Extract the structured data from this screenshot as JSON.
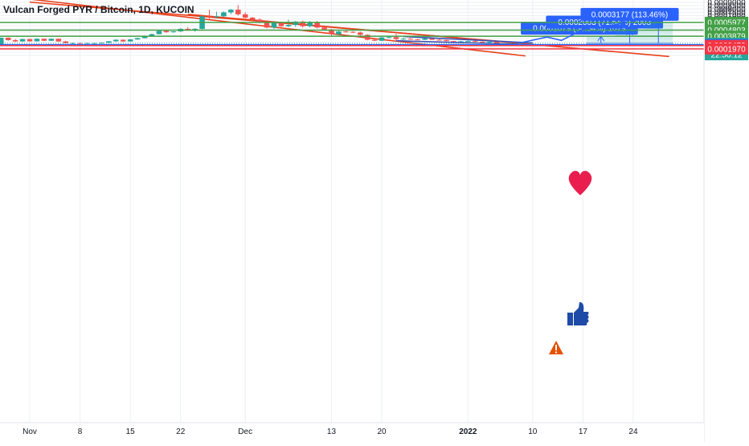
{
  "chart_data": {
    "type": "candlestick",
    "title": "Vulcan Forged PYR / Bitcoin, 1D, KUCOIN",
    "currency": "BTC",
    "y_axis": {
      "ylim": [
        8e-05,
        0.0009
      ],
      "ticks": [
        "0.0001000",
        "0.0001500",
        "0.0002000",
        "0.0002500",
        "0.0003000",
        "0.0003500",
        "0.0004000",
        "0.0004500",
        "0.0005000",
        "0.0005500",
        "0.0006000",
        "0.0006500",
        "0.0007000",
        "0.0007500",
        "0.0008000",
        "0.0008500",
        "0.0009000"
      ]
    },
    "x_axis": {
      "tick_labels": [
        {
          "label": "Nov",
          "day": 0
        },
        {
          "label": "8",
          "day": 7
        },
        {
          "label": "15",
          "day": 14
        },
        {
          "label": "22",
          "day": 21
        },
        {
          "label": "Dec",
          "day": 30
        },
        {
          "label": "13",
          "day": 42
        },
        {
          "label": "20",
          "day": 49
        },
        {
          "label": "2022",
          "day": 61
        },
        {
          "label": "10",
          "day": 70
        },
        {
          "label": "17",
          "day": 77
        },
        {
          "label": "24",
          "day": 84
        }
      ],
      "bold_labels": [
        "2022"
      ]
    },
    "candles": [
      [
        0.000172,
        0.000185,
        0.00017,
        0.00018
      ],
      [
        0.00018,
        0.000195,
        0.000178,
        0.00019
      ],
      [
        0.00019,
        0.00023,
        0.000188,
        0.000225
      ],
      [
        0.000225,
        0.00026,
        0.00022,
        0.00025
      ],
      [
        0.00025,
        0.00037,
        0.000245,
        0.000365
      ],
      [
        0.000365,
        0.000372,
        0.00032,
        0.00033
      ],
      [
        0.00033,
        0.000345,
        0.0003,
        0.00031
      ],
      [
        0.00031,
        0.00035,
        0.000305,
        0.000345
      ],
      [
        0.000345,
        0.00035,
        0.000305,
        0.000312
      ],
      [
        0.000312,
        0.000355,
        0.000308,
        0.00035
      ],
      [
        0.00035,
        0.000355,
        0.000315,
        0.00032
      ],
      [
        0.00032,
        0.000352,
        0.000318,
        0.00035
      ],
      [
        0.00035,
        0.000352,
        0.000305,
        0.00031
      ],
      [
        0.00031,
        0.00032,
        0.00028,
        0.000285
      ],
      [
        0.000285,
        0.000292,
        0.000265,
        0.000285
      ],
      [
        0.000285,
        0.000292,
        0.00027,
        0.00028
      ],
      [
        0.00028,
        0.000292,
        0.000275,
        0.000285
      ],
      [
        0.000285,
        0.00029,
        0.00027,
        0.000285
      ],
      [
        0.000285,
        0.000295,
        0.000272,
        0.00029
      ],
      [
        0.00029,
        0.000315,
        0.000285,
        0.000312
      ],
      [
        0.000312,
        0.00034,
        0.000305,
        0.000335
      ],
      [
        0.000335,
        0.00034,
        0.0003,
        0.00031
      ],
      [
        0.00031,
        0.000345,
        0.000305,
        0.00034
      ],
      [
        0.00034,
        0.000365,
        0.000335,
        0.00036
      ],
      [
        0.00036,
        0.0004,
        0.000355,
        0.000395
      ],
      [
        0.000395,
        0.00043,
        0.000385,
        0.00042
      ],
      [
        0.00042,
        0.00048,
        0.000415,
        0.00047
      ],
      [
        0.00047,
        0.00048,
        0.00044,
        0.00045
      ],
      [
        0.00045,
        0.000468,
        0.00044,
        0.000462
      ],
      [
        0.000462,
        0.00051,
        0.000455,
        0.0005
      ],
      [
        0.0005,
        0.000525,
        0.00047,
        0.00048
      ],
      [
        0.00048,
        0.00051,
        0.00046,
        0.0005
      ],
      [
        0.0005,
        0.0007,
        0.00049,
        0.00069
      ],
      [
        0.00069,
        0.00079,
        0.00065,
        0.00068
      ],
      [
        0.00068,
        0.00076,
        0.00066,
        0.00069
      ],
      [
        0.00069,
        0.000765,
        0.000675,
        0.00075
      ],
      [
        0.00075,
        0.0008,
        0.00072,
        0.00079
      ],
      [
        0.00079,
        0.00086,
        0.0007,
        0.00072
      ],
      [
        0.00072,
        0.00075,
        0.00066,
        0.00067
      ],
      [
        0.00067,
        0.00068,
        0.000625,
        0.00064
      ],
      [
        0.00064,
        0.00066,
        0.000585,
        0.0006
      ],
      [
        0.0006,
        0.00063,
        0.00051,
        0.00052
      ],
      [
        0.00052,
        0.0006,
        0.0005,
        0.00059
      ],
      [
        0.00059,
        0.0006,
        0.00053,
        0.00054
      ],
      [
        0.00054,
        0.00064,
        0.000525,
        0.00056
      ],
      [
        0.00056,
        0.00062,
        0.00053,
        0.00061
      ],
      [
        0.00061,
        0.000625,
        0.00052,
        0.00054
      ],
      [
        0.00054,
        0.00062,
        0.00052,
        0.00059
      ],
      [
        0.00059,
        0.00062,
        0.00051,
        0.00052
      ],
      [
        0.00052,
        0.00055,
        0.00048,
        0.00049
      ],
      [
        0.00049,
        0.0005,
        0.00039,
        0.00042
      ],
      [
        0.00042,
        0.00047,
        0.0004,
        0.00046
      ],
      [
        0.00046,
        0.000475,
        0.000445,
        0.000455
      ],
      [
        0.000455,
        0.000465,
        0.000435,
        0.000445
      ],
      [
        0.000445,
        0.00046,
        0.000395,
        0.00041
      ],
      [
        0.00041,
        0.00042,
        0.000325,
        0.000335
      ],
      [
        0.000335,
        0.000345,
        0.000315,
        0.00032
      ],
      [
        0.00032,
        0.000375,
        0.000315,
        0.00037
      ],
      [
        0.00037,
        0.000385,
        0.00036,
        0.000375
      ],
      [
        0.000375,
        0.000425,
        0.00033,
        0.000345
      ],
      [
        0.000345,
        0.000365,
        0.000335,
        0.00035
      ],
      [
        0.00035,
        0.000362,
        0.000335,
        0.00034
      ],
      [
        0.00034,
        0.000348,
        0.00033,
        0.000335
      ],
      [
        0.000335,
        0.00036,
        0.00033,
        0.000355
      ],
      [
        0.000355,
        0.00036,
        0.00033,
        0.000335
      ],
      [
        0.000335,
        0.000345,
        0.000325,
        0.000332
      ],
      [
        0.000332,
        0.000336,
        0.000312,
        0.000315
      ],
      [
        0.000315,
        0.000318,
        0.000305,
        0.00031
      ],
      [
        0.00031,
        0.000318,
        0.000302,
        0.000312
      ],
      [
        0.000312,
        0.00032,
        0.000305,
        0.000315
      ],
      [
        0.000315,
        0.00033,
        0.0003,
        0.000305
      ],
      [
        0.000305,
        0.000312,
        0.000282,
        0.000295
      ],
      [
        0.000295,
        0.000312,
        0.000285,
        0.000305
      ],
      [
        0.000305,
        0.00031,
        0.000268,
        0.000275
      ],
      [
        0.000275,
        0.000282,
        0.000268,
        0.00028
      ]
    ],
    "horizontal_levels": [
      {
        "label": "0.0005977",
        "value": 0.0005977,
        "color": "#43a047",
        "label_bg": "#43a047",
        "line": true
      },
      {
        "label": "0.0004803",
        "value": 0.0004803,
        "color": "#43a047",
        "label_bg": "#43a047",
        "line": true
      },
      {
        "label": "0.0003879",
        "value": 0.0003879,
        "color": "#43a047",
        "label_bg": "#43a047",
        "line": true
      },
      {
        "label": "0.0002799",
        "value": 0.0002799,
        "color": "#26a69a",
        "label_bg": "#26a69a",
        "line": false
      },
      {
        "label": "0.0002607",
        "value": 0.0002607,
        "color": "#2962ff",
        "label_bg": "#2962ff",
        "line": true
      },
      {
        "label": "0.0002472",
        "value": 0.0002472,
        "color": "#f23645",
        "label_bg": "#f23645",
        "line": true
      },
      {
        "label": "0.0001970",
        "value": 0.000197,
        "color": "#f23645",
        "label_bg": "#f23645",
        "line": true
      }
    ],
    "countdown": "22:50:12",
    "channel_lines_color": "#e8401c",
    "channel_upper": [
      [
        0.0,
        0.000905
      ],
      [
        69.0,
        0.00028
      ]
    ],
    "channel_lower": [
      [
        0.0,
        0.00095
      ],
      [
        69.0,
        9e-05
      ]
    ],
    "channel_parallel": [
      [
        22.0,
        0.00072
      ],
      [
        89.0,
        8.2e-05
      ]
    ],
    "wedge_color": "#3f51b5",
    "wedge_upper": [
      [
        52.0,
        0.000384
      ],
      [
        70.0,
        0.000287
      ]
    ],
    "wedge_lower": [
      [
        51.0,
        0.00032
      ],
      [
        68.0,
        0.000268
      ]
    ],
    "projection_path": [
      [
        68,
        0.000282
      ],
      [
        72,
        0.000377
      ],
      [
        74,
        0.000325
      ],
      [
        78,
        0.000545
      ],
      [
        79,
        0.000505
      ],
      [
        83,
        0.0006
      ]
    ],
    "targets": [
      {
        "label": "0.0001079 (38.54%) 1079",
        "value": 0.0001079,
        "base": 0.0002799
      },
      {
        "label": "0.0002003 (71.54%) 2003",
        "value": 0.0002003,
        "base": 0.0002799
      },
      {
        "label": "0.0003177 (113.46%)",
        "value": 0.0003177,
        "base": 0.0002799
      }
    ]
  }
}
